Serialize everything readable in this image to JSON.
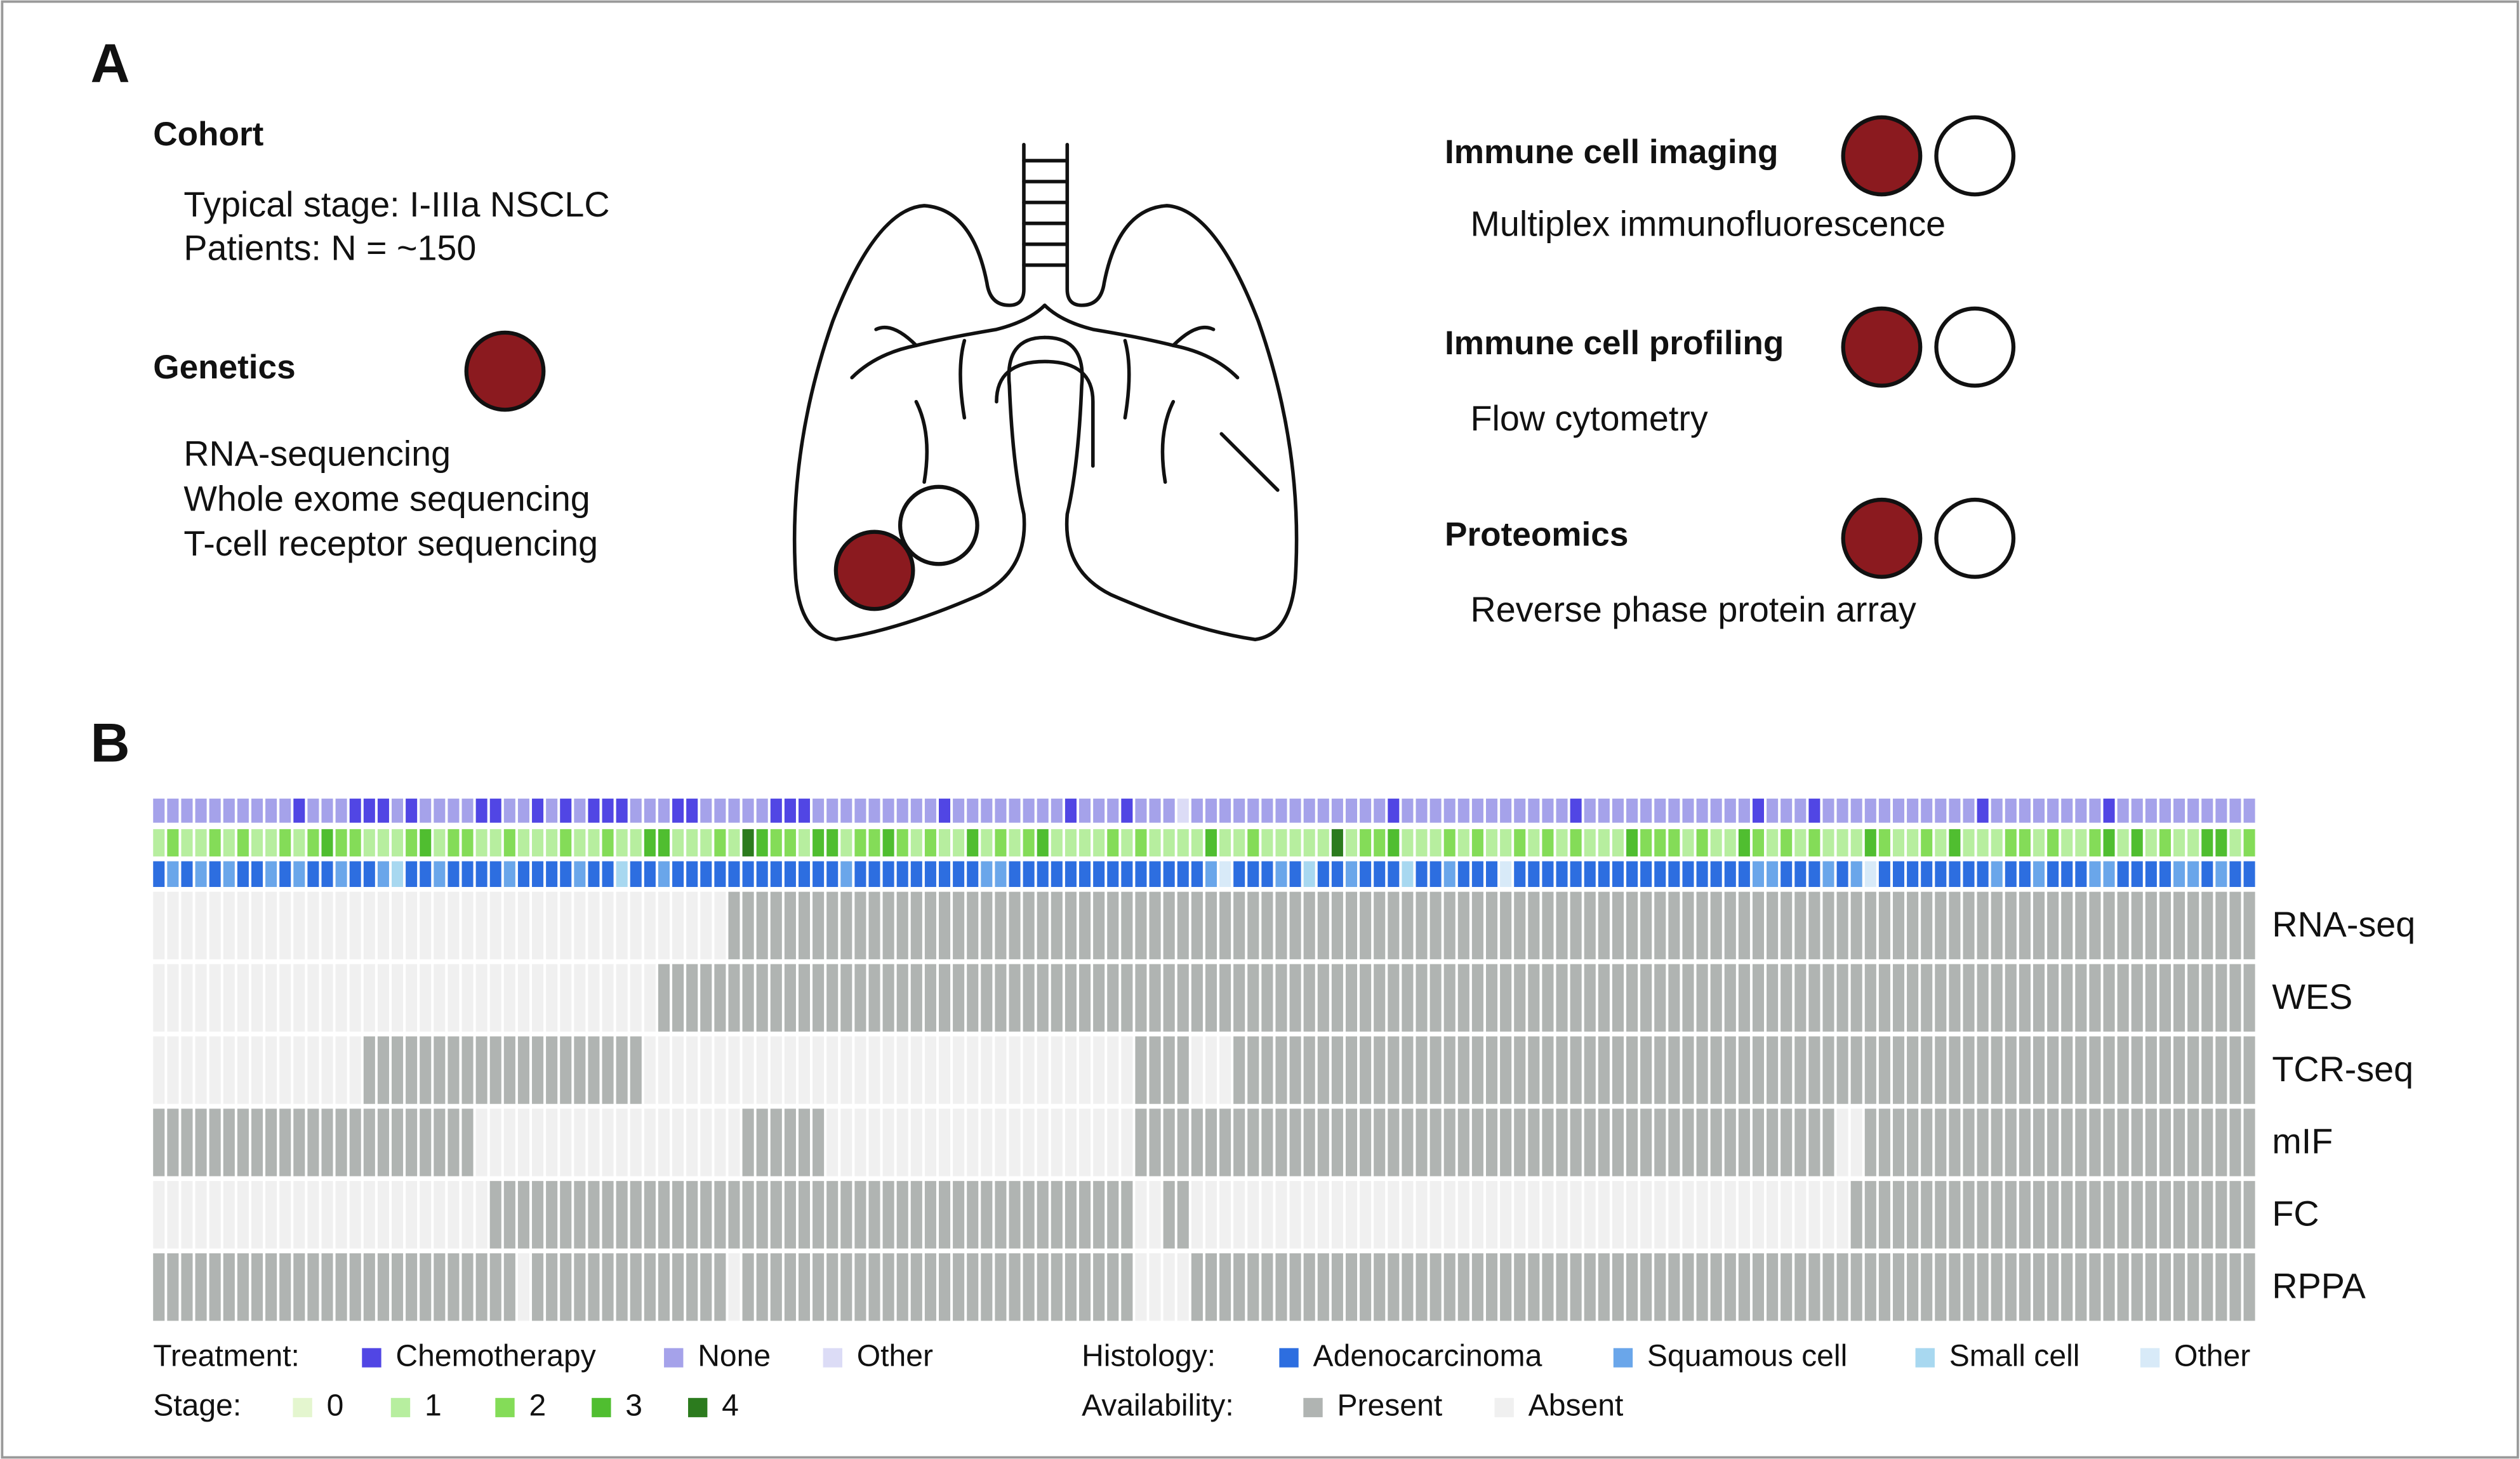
{
  "panel_a": {
    "label": "A",
    "cohort": {
      "title": "Cohort",
      "lines": [
        "Typical stage: I-IIIa NSCLC",
        "Patients: N = ~150"
      ]
    },
    "genetics": {
      "title": "Genetics",
      "lines": [
        "RNA-sequencing",
        "Whole exome sequencing",
        "T-cell receptor sequencing"
      ]
    },
    "assays": [
      {
        "title": "Immune cell imaging",
        "method": "Multiplex immunofluorescence"
      },
      {
        "title": "Immune cell profiling",
        "method": "Flow cytometry"
      },
      {
        "title": "Proteomics",
        "method": "Reverse phase protein array"
      }
    ]
  },
  "panel_b": {
    "label": "B",
    "annotations": [
      {
        "name": "Treatment:",
        "categories": [
          {
            "label": "Chemotherapy",
            "color": "#5146e4"
          },
          {
            "label": "None",
            "color": "#a5a2ea"
          },
          {
            "label": "Other",
            "color": "#dcdcf6"
          }
        ],
        "values": [
          1,
          1,
          1,
          1,
          1,
          1,
          1,
          1,
          1,
          1,
          0,
          1,
          1,
          1,
          0,
          0,
          0,
          1,
          0,
          1,
          1,
          1,
          1,
          0,
          0,
          1,
          1,
          0,
          1,
          0,
          1,
          0,
          0,
          0,
          1,
          1,
          1,
          0,
          0,
          1,
          1,
          1,
          1,
          1,
          0,
          0,
          0,
          1,
          1,
          1,
          1,
          1,
          1,
          1,
          1,
          1,
          0,
          1,
          1,
          1,
          1,
          1,
          1,
          1,
          1,
          0,
          1,
          1,
          1,
          0,
          1,
          1,
          1,
          2,
          1,
          1,
          1,
          1,
          1,
          1,
          1,
          1,
          1,
          1,
          1,
          1,
          1,
          1,
          0,
          1,
          1,
          1,
          1,
          1,
          1,
          1,
          1,
          1,
          1,
          1,
          1,
          0,
          1,
          1,
          1,
          1,
          1,
          1,
          1,
          1,
          1,
          1,
          1,
          1,
          0,
          1,
          1,
          1,
          0,
          1,
          1,
          1,
          1,
          1,
          1,
          1,
          1,
          1,
          1,
          1,
          0,
          1,
          1,
          1,
          1,
          1,
          1,
          1,
          1,
          0,
          1,
          1,
          1,
          1,
          1,
          1,
          1,
          1,
          1,
          1
        ]
      },
      {
        "name": "Stage:",
        "categories": [
          {
            "label": "0",
            "color": "#e4f6cf"
          },
          {
            "label": "1",
            "color": "#b7ee9f"
          },
          {
            "label": "2",
            "color": "#84dc58"
          },
          {
            "label": "3",
            "color": "#50be30"
          },
          {
            "label": "4",
            "color": "#2c7b1e"
          }
        ],
        "values": [
          1,
          2,
          1,
          1,
          2,
          1,
          2,
          1,
          1,
          2,
          1,
          2,
          3,
          2,
          2,
          1,
          1,
          1,
          2,
          3,
          1,
          2,
          2,
          1,
          1,
          2,
          1,
          1,
          1,
          2,
          1,
          1,
          2,
          1,
          1,
          3,
          3,
          1,
          1,
          1,
          2,
          1,
          4,
          3,
          2,
          2,
          1,
          3,
          3,
          1,
          2,
          2,
          3,
          2,
          1,
          2,
          1,
          1,
          3,
          1,
          2,
          1,
          2,
          3,
          1,
          1,
          1,
          1,
          2,
          1,
          2,
          1,
          1,
          1,
          1,
          3,
          1,
          1,
          2,
          1,
          1,
          1,
          1,
          1,
          4,
          1,
          2,
          2,
          3,
          1,
          1,
          1,
          2,
          1,
          2,
          1,
          1,
          2,
          1,
          2,
          1,
          2,
          1,
          1,
          1,
          3,
          2,
          2,
          2,
          1,
          2,
          1,
          1,
          3,
          2,
          1,
          2,
          1,
          2,
          1,
          1,
          1,
          3,
          2,
          1,
          1,
          2,
          1,
          3,
          1,
          1,
          1,
          2,
          2,
          1,
          2,
          1,
          1,
          2,
          3,
          1,
          3,
          1,
          2,
          1,
          1,
          3,
          3,
          1,
          2
        ]
      },
      {
        "name": "Histology:",
        "categories": [
          {
            "label": "Adenocarcinoma",
            "color": "#2d6ee0"
          },
          {
            "label": "Squamous cell",
            "color": "#6aa6ea"
          },
          {
            "label": "Small cell",
            "color": "#a8d8f0"
          },
          {
            "label": "Other",
            "color": "#d8eaf8"
          }
        ],
        "values": [
          0,
          1,
          0,
          1,
          0,
          1,
          0,
          0,
          1,
          0,
          1,
          0,
          0,
          1,
          0,
          0,
          1,
          2,
          0,
          0,
          1,
          0,
          0,
          0,
          0,
          1,
          0,
          0,
          0,
          0,
          1,
          0,
          0,
          2,
          0,
          0,
          1,
          0,
          0,
          0,
          0,
          0,
          0,
          0,
          0,
          0,
          0,
          0,
          0,
          1,
          0,
          0,
          0,
          0,
          0,
          0,
          0,
          0,
          0,
          1,
          1,
          0,
          0,
          0,
          0,
          0,
          0,
          0,
          0,
          0,
          0,
          0,
          0,
          0,
          0,
          1,
          3,
          0,
          0,
          0,
          1,
          0,
          2,
          0,
          0,
          1,
          0,
          0,
          0,
          2,
          0,
          0,
          1,
          0,
          0,
          0,
          3,
          0,
          0,
          0,
          0,
          0,
          0,
          0,
          0,
          0,
          0,
          0,
          0,
          0,
          0,
          0,
          0,
          0,
          1,
          1,
          0,
          0,
          0,
          1,
          0,
          1,
          3,
          0,
          0,
          0,
          0,
          0,
          0,
          0,
          0,
          1,
          0,
          0,
          1,
          0,
          0,
          0,
          1,
          1,
          0,
          0,
          0,
          0,
          1,
          1,
          0,
          1,
          0,
          0
        ]
      }
    ],
    "availability": {
      "name": "Availability:",
      "categories": [
        {
          "label": "Present",
          "color": "#b0b4b2"
        },
        {
          "label": "Absent",
          "color": "#f0f0f0"
        }
      ],
      "rows": [
        {
          "label": "RNA-seq",
          "present_ranges": [
            [
              41,
              150
            ]
          ]
        },
        {
          "label": "WES",
          "present_ranges": [
            [
              36,
              150
            ]
          ]
        },
        {
          "label": "TCR-seq",
          "present_ranges": [
            [
              15,
              35
            ],
            [
              70,
              74
            ],
            [
              77,
              150
            ]
          ]
        },
        {
          "label": "mIF",
          "present_ranges": [
            [
              0,
              23
            ],
            [
              42,
              48
            ],
            [
              70,
              120
            ],
            [
              122,
              150
            ]
          ]
        },
        {
          "label": "FC",
          "present_ranges": [
            [
              24,
              70
            ],
            [
              72,
              74
            ],
            [
              121,
              150
            ]
          ]
        },
        {
          "label": "RPPA",
          "present_ranges": [
            [
              0,
              26
            ],
            [
              27,
              41
            ],
            [
              42,
              70
            ],
            [
              74,
              150
            ]
          ]
        }
      ]
    }
  }
}
